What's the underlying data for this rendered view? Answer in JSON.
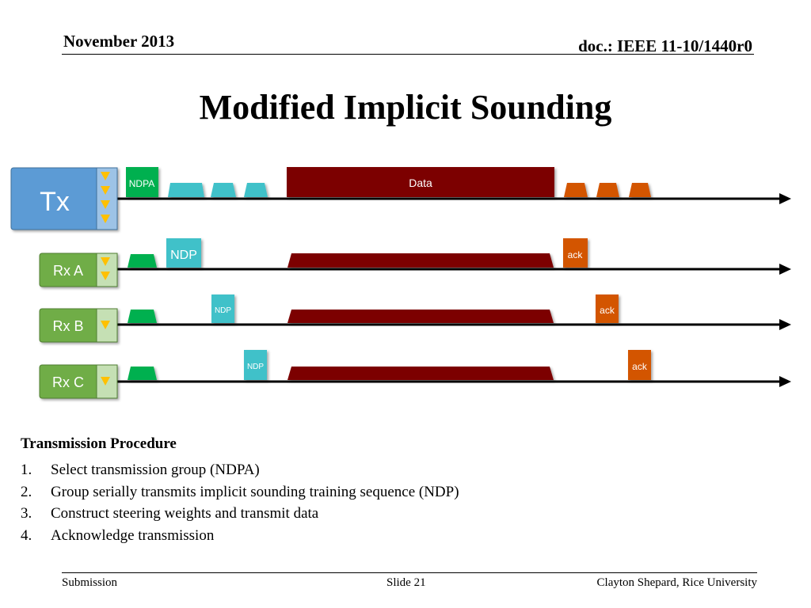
{
  "header": {
    "date": "November 2013",
    "doc_id": "doc.: IEEE 11-10/1440r0"
  },
  "title": "Modified Implicit Sounding",
  "diagram": {
    "tx_label": "Tx",
    "rx_labels": [
      "Rx A",
      "Rx B",
      "Rx C"
    ],
    "ndpa_label": "NDPA",
    "data_label": "Data",
    "ndp_label": "NDP",
    "ack_label": "ack",
    "colors": {
      "tx_box": "#5b9bd5",
      "rx_box": "#70ad47",
      "ndpa": "#00b050",
      "ndp": "#3fc1c9",
      "data": "#7b0000",
      "ack": "#d35400",
      "arrow_marker": "#ffc000"
    }
  },
  "procedure": {
    "title": "Transmission Procedure",
    "steps": [
      {
        "num": "1.",
        "text": "Select transmission group (NDPA)"
      },
      {
        "num": "2.",
        "text": "Group serially transmits implicit sounding training sequence (NDP)"
      },
      {
        "num": "3.",
        "text": "Construct steering weights and transmit data"
      },
      {
        "num": "4.",
        "text": "Acknowledge transmission"
      }
    ]
  },
  "footer": {
    "left": "Submission",
    "center": "Slide 21",
    "right": "Clayton Shepard, Rice University"
  }
}
